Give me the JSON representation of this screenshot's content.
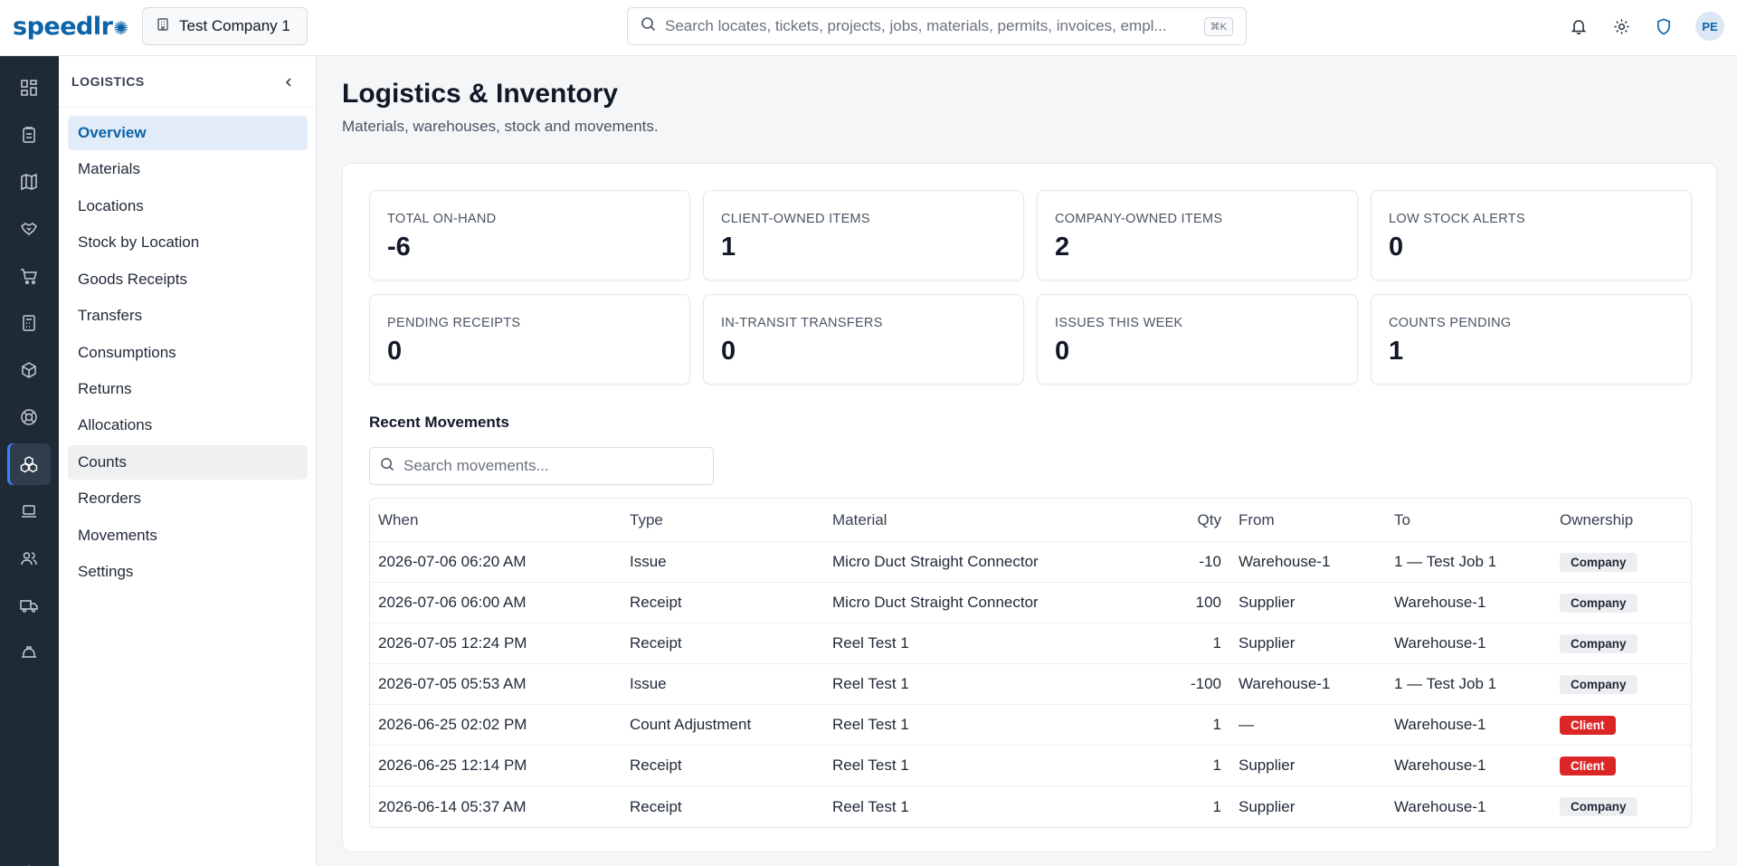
{
  "brand": {
    "name": "speedlr"
  },
  "company": {
    "name": "Test Company 1"
  },
  "search": {
    "placeholder": "Search locates, tickets, projects, jobs, materials, permits, invoices, empl...",
    "shortcut": "⌘K"
  },
  "user": {
    "initials": "PE"
  },
  "sidebar": {
    "heading": "LOGISTICS",
    "items": [
      {
        "label": "Overview"
      },
      {
        "label": "Materials"
      },
      {
        "label": "Locations"
      },
      {
        "label": "Stock by Location"
      },
      {
        "label": "Goods Receipts"
      },
      {
        "label": "Transfers"
      },
      {
        "label": "Consumptions"
      },
      {
        "label": "Returns"
      },
      {
        "label": "Allocations"
      },
      {
        "label": "Counts"
      },
      {
        "label": "Reorders"
      },
      {
        "label": "Movements"
      },
      {
        "label": "Settings"
      }
    ]
  },
  "page": {
    "title": "Logistics & Inventory",
    "subtitle": "Materials, warehouses, stock and movements."
  },
  "stats": [
    {
      "label": "TOTAL ON-HAND",
      "value": "-6"
    },
    {
      "label": "CLIENT-OWNED ITEMS",
      "value": "1"
    },
    {
      "label": "COMPANY-OWNED ITEMS",
      "value": "2"
    },
    {
      "label": "LOW STOCK ALERTS",
      "value": "0"
    },
    {
      "label": "PENDING RECEIPTS",
      "value": "0"
    },
    {
      "label": "IN-TRANSIT TRANSFERS",
      "value": "0"
    },
    {
      "label": "ISSUES THIS WEEK",
      "value": "0"
    },
    {
      "label": "COUNTS PENDING",
      "value": "1"
    }
  ],
  "movements": {
    "title": "Recent Movements",
    "search_placeholder": "Search movements...",
    "columns": {
      "when": "When",
      "type": "Type",
      "material": "Material",
      "qty": "Qty",
      "from": "From",
      "to": "To",
      "ownership": "Ownership"
    },
    "rows": [
      {
        "when": "2026-07-06 06:20 AM",
        "type": "Issue",
        "material": "Micro Duct Straight Connector",
        "qty": "-10",
        "from": "Warehouse-1",
        "to": "1 — Test Job 1",
        "ownership": "Company"
      },
      {
        "when": "2026-07-06 06:00 AM",
        "type": "Receipt",
        "material": "Micro Duct Straight Connector",
        "qty": "100",
        "from": "Supplier",
        "to": "Warehouse-1",
        "ownership": "Company"
      },
      {
        "when": "2026-07-05 12:24 PM",
        "type": "Receipt",
        "material": "Reel Test 1",
        "qty": "1",
        "from": "Supplier",
        "to": "Warehouse-1",
        "ownership": "Company"
      },
      {
        "when": "2026-07-05 05:53 AM",
        "type": "Issue",
        "material": "Reel Test 1",
        "qty": "-100",
        "from": "Warehouse-1",
        "to": "1 — Test Job 1",
        "ownership": "Company"
      },
      {
        "when": "2026-06-25 02:02 PM",
        "type": "Count Adjustment",
        "material": "Reel Test 1",
        "qty": "1",
        "from": "—",
        "to": "Warehouse-1",
        "ownership": "Client"
      },
      {
        "when": "2026-06-25 12:14 PM",
        "type": "Receipt",
        "material": "Reel Test 1",
        "qty": "1",
        "from": "Supplier",
        "to": "Warehouse-1",
        "ownership": "Client"
      },
      {
        "when": "2026-06-14 05:37 AM",
        "type": "Receipt",
        "material": "Reel Test 1",
        "qty": "1",
        "from": "Supplier",
        "to": "Warehouse-1",
        "ownership": "Company"
      }
    ]
  },
  "colors": {
    "brand": "#0b63a8",
    "rail": "#1f2a37",
    "client_badge": "#dc2626",
    "active_nav_bg": "#e1ecf8"
  }
}
